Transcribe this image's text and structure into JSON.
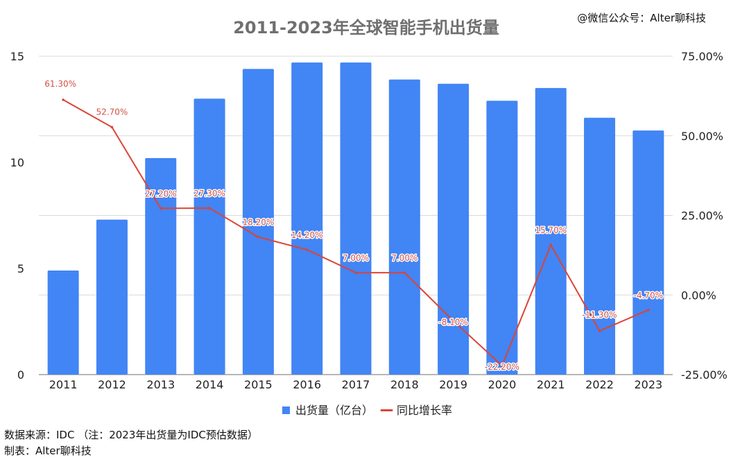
{
  "watermark": "@微信公众号：Alter聊科技",
  "footer": {
    "source_line": "数据来源：IDC （注：2023年出货量为IDC预估数据）",
    "credit_line": "制表：Alter聊科技"
  },
  "chart_data": {
    "type": "bar",
    "title": "2011-2023年全球智能手机出货量",
    "categories": [
      "2011",
      "2012",
      "2013",
      "2014",
      "2015",
      "2016",
      "2017",
      "2018",
      "2019",
      "2020",
      "2021",
      "2022",
      "2023"
    ],
    "series": [
      {
        "name": "出货量（亿台）",
        "type": "bar",
        "axis": "left",
        "color": "#4285f4",
        "values": [
          4.9,
          7.3,
          10.2,
          13.0,
          14.4,
          14.7,
          14.7,
          13.9,
          13.7,
          12.9,
          13.5,
          12.1,
          11.5
        ]
      },
      {
        "name": "同比增长率",
        "type": "line",
        "axis": "right",
        "color": "#db4437",
        "values": [
          61.3,
          52.7,
          27.2,
          27.3,
          18.2,
          14.2,
          7.0,
          7.0,
          -8.1,
          -22.2,
          15.7,
          -11.3,
          -4.7
        ],
        "labels": [
          "61.30%",
          "52.70%",
          "27.20%",
          "27.30%",
          "18.20%",
          "14.20%",
          "7.00%",
          "7.00%",
          "-8.10%",
          "-22.20%",
          "15.70%",
          "-11.30%",
          "-4.70%"
        ]
      }
    ],
    "left_axis": {
      "min": 0,
      "max": 15,
      "ticks": [
        0,
        5,
        10,
        15
      ],
      "tick_labels": [
        "0",
        "5",
        "10",
        "15"
      ]
    },
    "right_axis": {
      "min": -25,
      "max": 75,
      "ticks": [
        -25,
        0,
        25,
        50,
        75
      ],
      "tick_labels": [
        "-25.00%",
        "0.00%",
        "25.00%",
        "50.00%",
        "75.00%"
      ]
    },
    "grid": true,
    "legend_position": "bottom"
  }
}
